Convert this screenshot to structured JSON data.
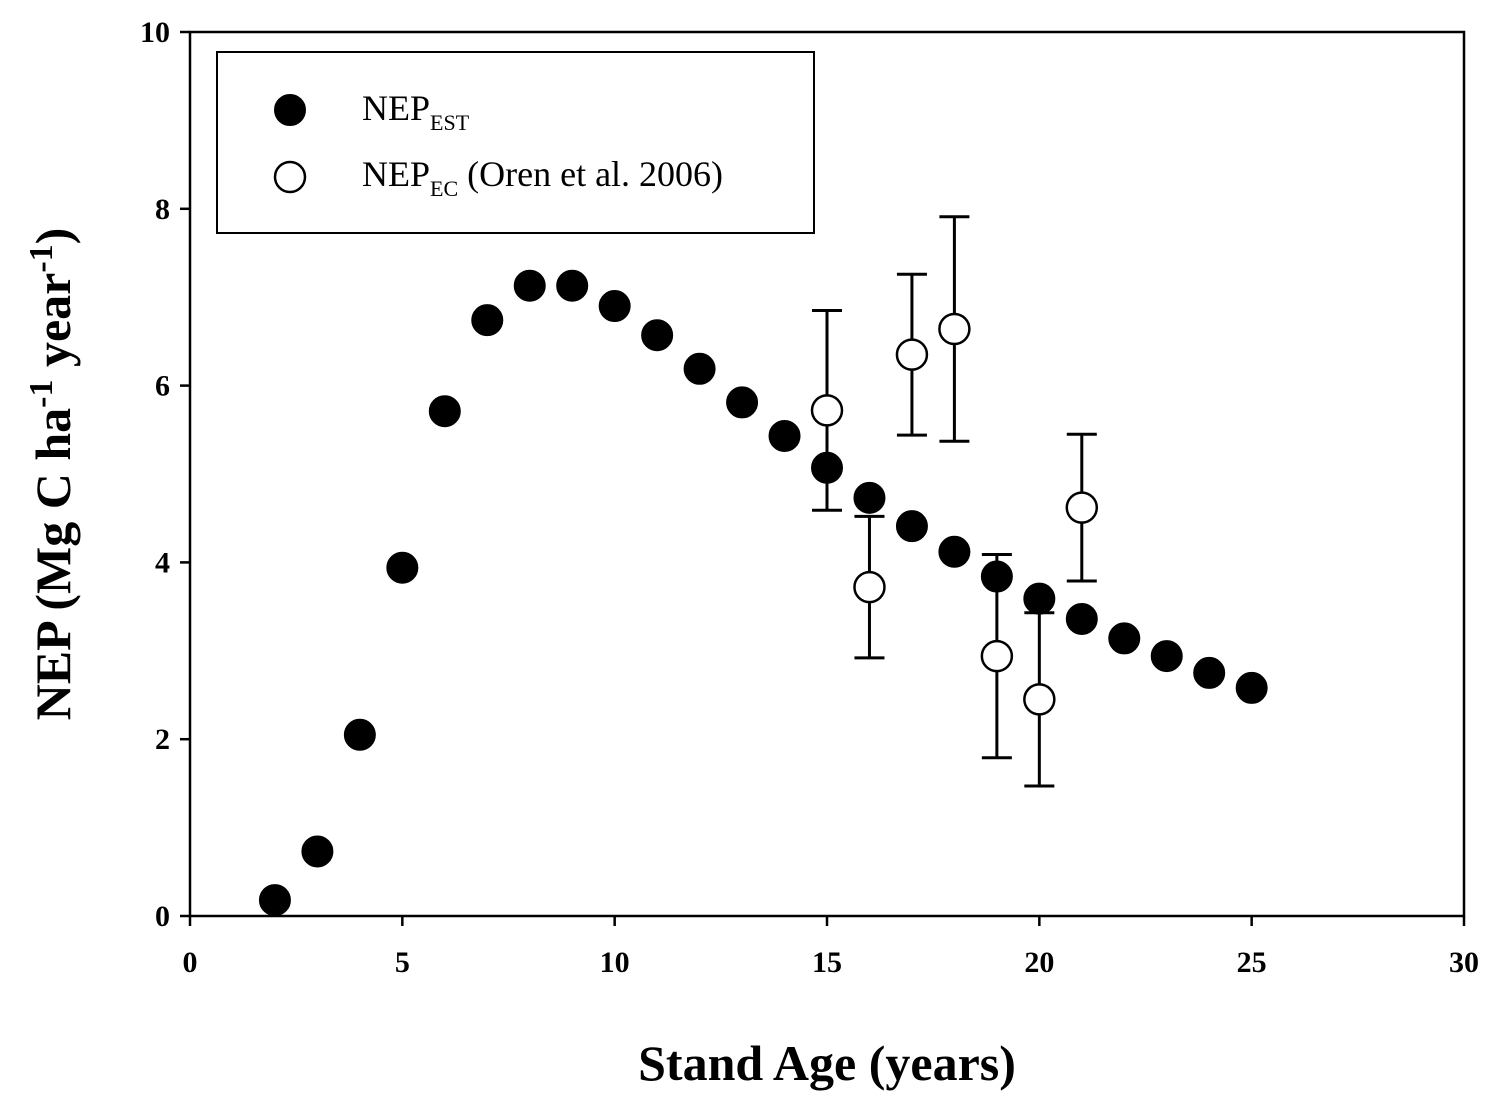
{
  "chart_data": {
    "type": "scatter",
    "xlabel": "Stand Age (years)",
    "ylabel": {
      "prefix": "NEP (Mg C ha",
      "sup1": "-1",
      "middle": " year",
      "sup2": "-1",
      "suffix": ")"
    },
    "xlim": [
      0,
      30
    ],
    "ylim": [
      0,
      10
    ],
    "xticks": [
      0,
      5,
      10,
      15,
      20,
      25,
      30
    ],
    "yticks": [
      0,
      2,
      4,
      6,
      8,
      10
    ],
    "grid": false,
    "legend_position": "top-left",
    "series": [
      {
        "name": "NEP_EST",
        "legend": {
          "main": "NEP",
          "sub": "EST",
          "suffix": ""
        },
        "marker": "filled-circle",
        "color": "#000000",
        "x": [
          2,
          3,
          4,
          5,
          6,
          7,
          8,
          9,
          10,
          11,
          12,
          13,
          14,
          15,
          16,
          17,
          18,
          19,
          20,
          21,
          22,
          23,
          24,
          25
        ],
        "y": [
          0.18,
          0.73,
          2.05,
          3.94,
          5.71,
          6.74,
          7.13,
          7.13,
          6.9,
          6.57,
          6.19,
          5.81,
          5.43,
          5.07,
          4.73,
          4.41,
          4.12,
          3.84,
          3.59,
          3.36,
          3.14,
          2.94,
          2.75,
          2.58
        ]
      },
      {
        "name": "NEP_EC (Oren et al. 2006)",
        "legend": {
          "main": "NEP",
          "sub": "EC",
          "suffix": " (Oren et al. 2006)"
        },
        "marker": "open-circle",
        "color": "#000000",
        "x": [
          15,
          16,
          17,
          18,
          19,
          20,
          21
        ],
        "y": [
          5.72,
          3.72,
          6.35,
          6.64,
          2.94,
          2.45,
          4.62
        ],
        "error": [
          1.13,
          0.8,
          0.91,
          1.27,
          1.15,
          0.98,
          0.83
        ]
      }
    ]
  }
}
